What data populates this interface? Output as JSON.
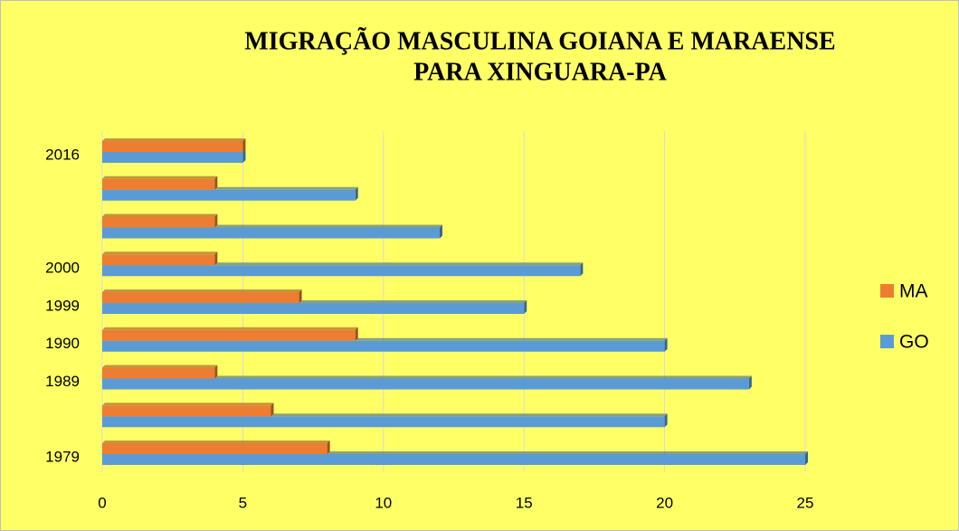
{
  "chart_data": {
    "type": "bar",
    "orientation": "horizontal",
    "title": [
      "MIGRAÇÃO MASCULINA GOIANA E MARAENSE",
      "PARA XINGUARA-PA"
    ],
    "categories": [
      "1979",
      null,
      "1989",
      "1990",
      "1999",
      "2000",
      null,
      null,
      "2016"
    ],
    "series": [
      {
        "name": "GO",
        "color": "#5b9bd5",
        "values": [
          25,
          20,
          23,
          20,
          15,
          17,
          12,
          9,
          5
        ]
      },
      {
        "name": "MA",
        "color": "#ed7d31",
        "values": [
          8,
          6,
          4,
          9,
          7,
          4,
          4,
          4,
          5
        ]
      }
    ],
    "xlim": [
      0,
      25
    ],
    "xticks": [
      0,
      5,
      10,
      15,
      20,
      25
    ],
    "grid": true,
    "legend": "right"
  }
}
